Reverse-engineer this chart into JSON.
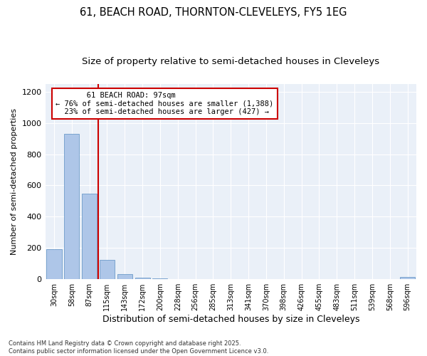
{
  "title_line1": "61, BEACH ROAD, THORNTON-CLEVELEYS, FY5 1EG",
  "title_line2": "Size of property relative to semi-detached houses in Cleveleys",
  "xlabel": "Distribution of semi-detached houses by size in Cleveleys",
  "ylabel": "Number of semi-detached properties",
  "categories": [
    "30sqm",
    "58sqm",
    "87sqm",
    "115sqm",
    "143sqm",
    "172sqm",
    "200sqm",
    "228sqm",
    "256sqm",
    "285sqm",
    "313sqm",
    "341sqm",
    "370sqm",
    "398sqm",
    "426sqm",
    "455sqm",
    "483sqm",
    "511sqm",
    "539sqm",
    "568sqm",
    "596sqm"
  ],
  "values": [
    193,
    931,
    547,
    126,
    33,
    12,
    6,
    0,
    0,
    0,
    0,
    0,
    0,
    0,
    0,
    0,
    0,
    0,
    0,
    0,
    13
  ],
  "bar_color": "#aec6e8",
  "bar_edge_color": "#5a8fc2",
  "vline_color": "#cc0000",
  "annotation_line1": "       61 BEACH ROAD: 97sqm",
  "annotation_line2": "← 76% of semi-detached houses are smaller (1,388)",
  "annotation_line3": "  23% of semi-detached houses are larger (427) →",
  "annotation_box_color": "#cc0000",
  "ylim": [
    0,
    1250
  ],
  "yticks": [
    0,
    200,
    400,
    600,
    800,
    1000,
    1200
  ],
  "plot_bg_color": "#eaf0f8",
  "footnote": "Contains HM Land Registry data © Crown copyright and database right 2025.\nContains public sector information licensed under the Open Government Licence v3.0.",
  "title_fontsize": 10.5,
  "subtitle_fontsize": 9.5
}
